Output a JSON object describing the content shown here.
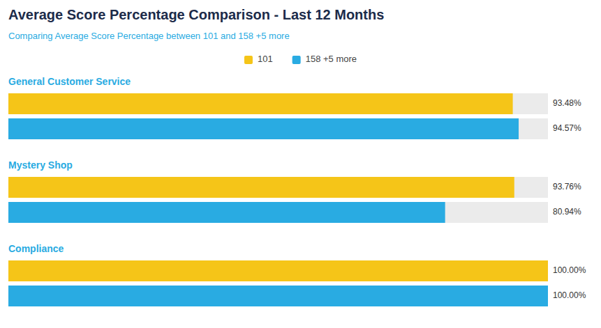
{
  "chart_data": {
    "type": "bar",
    "orientation": "horizontal",
    "title": "Average Score Percentage Comparison - Last 12 Months",
    "subtitle": "Comparing Average Score Percentage between 101 and 158 +5 more",
    "categories": [
      "General Customer Service",
      "Mystery Shop",
      "Compliance"
    ],
    "series": [
      {
        "name": "101",
        "color": "#F5C518",
        "values": [
          93.48,
          93.76,
          100.0
        ],
        "value_labels": [
          "93.48%",
          "93.76%",
          "100.00%"
        ]
      },
      {
        "name": "158 +5 more",
        "color": "#29ABE2",
        "values": [
          94.57,
          80.94,
          100.0
        ],
        "value_labels": [
          "94.57%",
          "80.94%",
          "100.00%"
        ]
      }
    ],
    "xlim": [
      0,
      100
    ],
    "data_labels": true,
    "legend": "top",
    "tick_labels": false,
    "grid": false
  }
}
